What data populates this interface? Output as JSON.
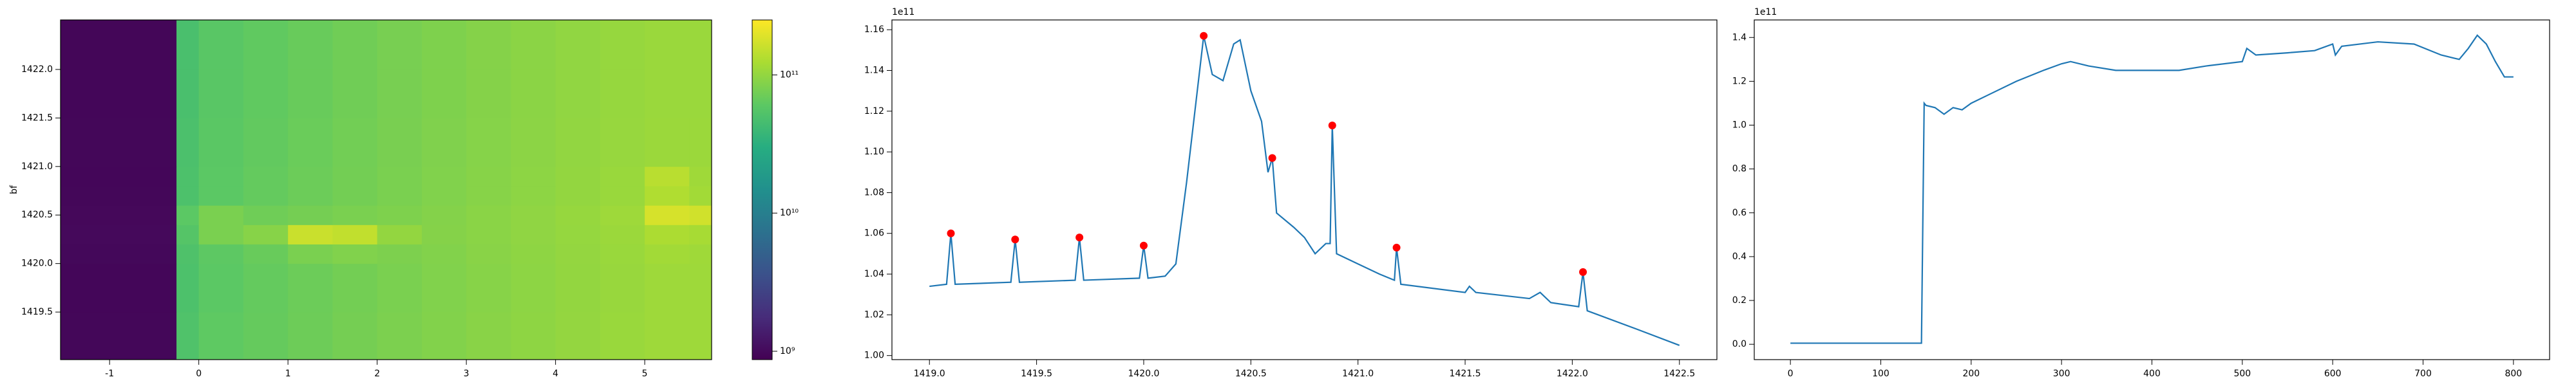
{
  "chart_data": [
    {
      "type": "heatmap",
      "ylabel": "bf",
      "xbins": [
        -1.55,
        -0.25,
        0,
        0.5,
        1,
        1.5,
        2,
        2.5,
        3,
        3.5,
        4,
        4.5,
        5,
        5.5,
        5.75
      ],
      "ybins": [
        1419.01,
        1419.5,
        1420.0,
        1420.2,
        1420.4,
        1420.6,
        1420.8,
        1421.0,
        1421.5,
        1422.0,
        1422.51
      ],
      "z": [
        [
          960000000.0,
          52000000000.0,
          62000000000.0,
          66000000000.0,
          71000000000.0,
          76000000000.0,
          81000000000.0,
          86000000000.0,
          91000000000.0,
          96000000000.0,
          101000000000.0,
          106000000000.0,
          110000000000.0,
          110000000000.0
        ],
        [
          950000000.0,
          50000000000.0,
          60000000000.0,
          65000000000.0,
          70000000000.0,
          75000000000.0,
          80000000000.0,
          85000000000.0,
          90000000000.0,
          95000000000.0,
          100000000000.0,
          105000000000.0,
          110000000000.0,
          110000000000.0
        ],
        [
          970000000.0,
          51000000000.0,
          61000000000.0,
          68000000000.0,
          80000000000.0,
          85000000000.0,
          82000000000.0,
          86000000000.0,
          91000000000.0,
          96000000000.0,
          101000000000.0,
          106000000000.0,
          115000000000.0,
          112000000000.0
        ],
        [
          1000000000.0,
          55000000000.0,
          80000000000.0,
          90000000000.0,
          160000000000.0,
          150000000000.0,
          100000000000.0,
          88000000000.0,
          92000000000.0,
          97000000000.0,
          102000000000.0,
          108000000000.0,
          125000000000.0,
          120000000000.0
        ],
        [
          980000000.0,
          60000000000.0,
          80000000000.0,
          72000000000.0,
          76000000000.0,
          80000000000.0,
          83000000000.0,
          87000000000.0,
          92000000000.0,
          97000000000.0,
          103000000000.0,
          110000000000.0,
          180000000000.0,
          170000000000.0
        ],
        [
          960000000.0,
          50000000000.0,
          60000000000.0,
          65000000000.0,
          70000000000.0,
          75000000000.0,
          80000000000.0,
          85000000000.0,
          90000000000.0,
          95000000000.0,
          100000000000.0,
          106000000000.0,
          130000000000.0,
          115000000000.0
        ],
        [
          950000000.0,
          50000000000.0,
          60000000000.0,
          65000000000.0,
          70000000000.0,
          75000000000.0,
          80000000000.0,
          85000000000.0,
          90000000000.0,
          95000000000.0,
          100000000000.0,
          106000000000.0,
          140000000000.0,
          112000000000.0
        ],
        [
          960000000.0,
          49000000000.0,
          59000000000.0,
          64000000000.0,
          69000000000.0,
          74000000000.0,
          79000000000.0,
          84000000000.0,
          89000000000.0,
          94000000000.0,
          99000000000.0,
          104000000000.0,
          108000000000.0,
          108000000000.0
        ],
        [
          950000000.0,
          48000000000.0,
          58000000000.0,
          63000000000.0,
          68000000000.0,
          73000000000.0,
          78000000000.0,
          83000000000.0,
          88000000000.0,
          93000000000.0,
          98000000000.0,
          103000000000.0,
          107000000000.0,
          107000000000.0
        ],
        [
          940000000.0,
          48000000000.0,
          58000000000.0,
          63000000000.0,
          68000000000.0,
          73000000000.0,
          78000000000.0,
          83000000000.0,
          88000000000.0,
          93000000000.0,
          98000000000.0,
          103000000000.0,
          107000000000.0,
          107000000000.0
        ]
      ],
      "xlim": [
        -1.55,
        5.75
      ],
      "ylim": [
        1419.01,
        1422.51
      ],
      "xticks": [
        -1,
        0,
        1,
        2,
        3,
        4,
        5
      ],
      "yticks": [
        {
          "value": 1419.5,
          "label": "1419.5"
        },
        {
          "value": 1420,
          "label": "1420.0"
        },
        {
          "value": 1420.5,
          "label": "1420.5"
        },
        {
          "value": 1421,
          "label": "1421.0"
        },
        {
          "value": 1421.5,
          "label": "1421.5"
        },
        {
          "value": 1422,
          "label": "1422.0"
        }
      ],
      "colormap": "viridis",
      "colorbar": {
        "log": true,
        "lim": [
          870000000.0,
          250000000000.0
        ],
        "ticks": [
          {
            "value": 1000000000.0,
            "label": "10⁹"
          },
          {
            "value": 10000000000.0,
            "label": "10¹⁰"
          },
          {
            "value": 100000000000.0,
            "label": "10¹¹"
          }
        ]
      }
    },
    {
      "type": "line",
      "offset_text": "1e11",
      "xlim": [
        1418.825,
        1422.675
      ],
      "ylim": [
        0.998,
        1.1648
      ],
      "xticks": [
        {
          "value": 1419,
          "label": "1419.0"
        },
        {
          "value": 1419.5,
          "label": "1419.5"
        },
        {
          "value": 1420,
          "label": "1420.0"
        },
        {
          "value": 1420.5,
          "label": "1420.5"
        },
        {
          "value": 1421,
          "label": "1421.0"
        },
        {
          "value": 1421.5,
          "label": "1421.5"
        },
        {
          "value": 1422,
          "label": "1422.0"
        },
        {
          "value": 1422.5,
          "label": "1422.5"
        }
      ],
      "yticks": [
        {
          "value": 1.0,
          "label": "1.00"
        },
        {
          "value": 1.02,
          "label": "1.02"
        },
        {
          "value": 1.04,
          "label": "1.04"
        },
        {
          "value": 1.06,
          "label": "1.06"
        },
        {
          "value": 1.08,
          "label": "1.08"
        },
        {
          "value": 1.1,
          "label": "1.10"
        },
        {
          "value": 1.12,
          "label": "1.12"
        },
        {
          "value": 1.14,
          "label": "1.14"
        },
        {
          "value": 1.16,
          "label": "1.16"
        }
      ],
      "series": [
        {
          "style": "line",
          "color": "#1f77b4",
          "x": [
            1419.0,
            1419.08,
            1419.1,
            1419.12,
            1419.38,
            1419.4,
            1419.42,
            1419.68,
            1419.7,
            1419.72,
            1419.98,
            1420.0,
            1420.02,
            1420.1,
            1420.15,
            1420.2,
            1420.25,
            1420.28,
            1420.32,
            1420.37,
            1420.42,
            1420.45,
            1420.5,
            1420.55,
            1420.58,
            1420.6,
            1420.62,
            1420.7,
            1420.75,
            1420.8,
            1420.85,
            1420.87,
            1420.88,
            1420.9,
            1421.0,
            1421.1,
            1421.17,
            1421.18,
            1421.2,
            1421.5,
            1421.52,
            1421.55,
            1421.8,
            1421.85,
            1421.9,
            1422.03,
            1422.05,
            1422.07,
            1422.3,
            1422.5
          ],
          "values": [
            1.034,
            1.035,
            1.06,
            1.035,
            1.036,
            1.057,
            1.036,
            1.037,
            1.058,
            1.037,
            1.038,
            1.054,
            1.038,
            1.039,
            1.045,
            1.085,
            1.13,
            1.157,
            1.138,
            1.135,
            1.153,
            1.155,
            1.13,
            1.115,
            1.09,
            1.097,
            1.07,
            1.063,
            1.058,
            1.05,
            1.055,
            1.055,
            1.113,
            1.05,
            1.045,
            1.04,
            1.037,
            1.053,
            1.035,
            1.031,
            1.034,
            1.031,
            1.028,
            1.031,
            1.026,
            1.024,
            1.041,
            1.022,
            1.013,
            1.005
          ]
        },
        {
          "style": "markers",
          "color": "#ff0000",
          "x": [
            1419.1,
            1419.4,
            1419.7,
            1420.0,
            1420.28,
            1420.6,
            1420.88,
            1421.18,
            1422.05
          ],
          "values": [
            1.06,
            1.057,
            1.058,
            1.054,
            1.157,
            1.097,
            1.113,
            1.053,
            1.041
          ]
        }
      ]
    },
    {
      "type": "line",
      "offset_text": "1e11",
      "xlim": [
        -40,
        840
      ],
      "ylim": [
        -0.07,
        1.48
      ],
      "xticks": [
        0,
        100,
        200,
        300,
        400,
        500,
        600,
        700,
        800
      ],
      "yticks": [
        {
          "value": 0,
          "label": "0.0"
        },
        {
          "value": 0.2,
          "label": "0.2"
        },
        {
          "value": 0.4,
          "label": "0.4"
        },
        {
          "value": 0.6,
          "label": "0.6"
        },
        {
          "value": 0.8,
          "label": "0.8"
        },
        {
          "value": 1.0,
          "label": "1.0"
        },
        {
          "value": 1.2,
          "label": "1.2"
        },
        {
          "value": 1.4,
          "label": "1.4"
        }
      ],
      "series": [
        {
          "style": "line",
          "color": "#1f77b4",
          "x": [
            0,
            145,
            148,
            150,
            160,
            170,
            180,
            190,
            200,
            220,
            250,
            280,
            300,
            310,
            330,
            360,
            400,
            430,
            460,
            500,
            505,
            515,
            550,
            580,
            600,
            603,
            610,
            650,
            690,
            720,
            740,
            750,
            760,
            770,
            780,
            790,
            800
          ],
          "values": [
            0.005,
            0.005,
            1.1,
            1.09,
            1.08,
            1.05,
            1.08,
            1.07,
            1.1,
            1.14,
            1.2,
            1.25,
            1.28,
            1.29,
            1.27,
            1.25,
            1.25,
            1.25,
            1.27,
            1.29,
            1.35,
            1.32,
            1.33,
            1.34,
            1.37,
            1.32,
            1.36,
            1.38,
            1.37,
            1.32,
            1.3,
            1.35,
            1.41,
            1.37,
            1.29,
            1.22,
            1.22
          ]
        }
      ]
    }
  ]
}
